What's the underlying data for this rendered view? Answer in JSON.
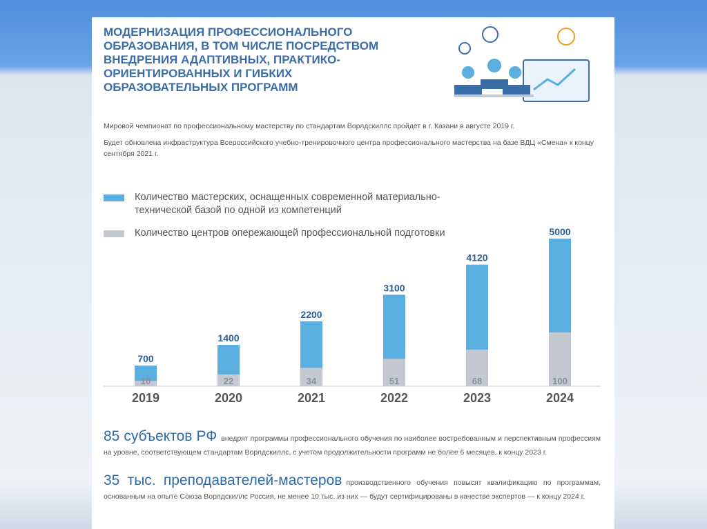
{
  "header": {
    "title_lines": [
      "МОДЕРНИЗАЦИЯ ПРОФЕССИОНАЛЬНОГО",
      "ОБРАЗОВАНИЯ, В ТОМ ЧИСЛЕ ПОСРЕДСТВОМ",
      "ВНЕДРЕНИЯ АДАПТИВНЫХ, ПРАКТИКО-",
      "ОРИЕНТИРОВАННЫХ И ГИБКИХ",
      "ОБРАЗОВАТЕЛЬНЫХ ПРОГРАММ"
    ]
  },
  "intro": [
    "Мировой чемпионат по профессиональному мастерству по стандартам Ворлдскиллс пройдет в г. Казани в августе 2019 г.",
    "Будет обновлена инфраструктура Всероссийского учебно-тренировочного центра профессионального мастерства на базе ВДЦ «Смена» к концу сентября 2021 г."
  ],
  "chart_data": {
    "type": "bar",
    "categories": [
      "2019",
      "2020",
      "2021",
      "2022",
      "2023",
      "2024"
    ],
    "series": [
      {
        "name": "Количество мастерских, оснащенных современной материально-технической базой по одной из компетенций",
        "color": "#5aafe0",
        "values": [
          700,
          1400,
          2200,
          3100,
          4120,
          5000
        ]
      },
      {
        "name": "Количество центров опережающей профессиональной подготовки",
        "color": "#c4c9d1",
        "values": [
          10,
          22,
          34,
          51,
          68,
          100
        ],
        "axis": "y2"
      }
    ],
    "ylim": [
      0,
      5000
    ],
    "y2lim": [
      0,
      274
    ],
    "grid": false
  },
  "facts": [
    {
      "lead": "85 субъектов РФ",
      "text": "внедрят программы профессионального обучения по наиболее востребованным и перспективным профессиям на уровне, соответствующем стандартам Ворлдскиллс, с учетом продолжительности программ не более 6 месяцев, к концу 2023 г."
    },
    {
      "lead": "35 тыс. преподавателей-мастеров",
      "text": "производственного обучения повысят квалификацию по программам, основанным на опыте Союза Ворлдскиллс Россия, не менее 10 тыс. из них — будут сертифицированы в качестве экспертов — к концу 2024 г."
    }
  ]
}
